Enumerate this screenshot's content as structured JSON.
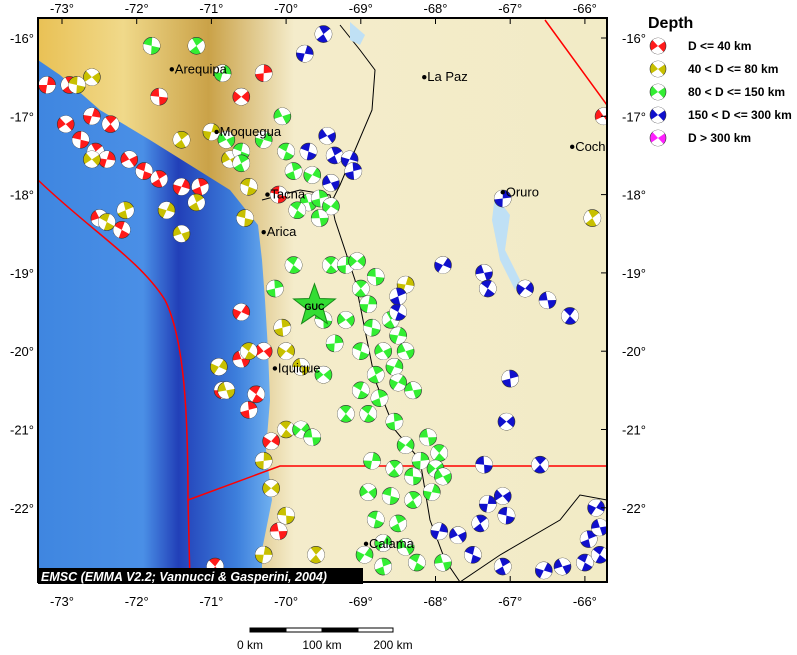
{
  "map": {
    "lon_range": [
      -73.3,
      -65.7
    ],
    "lat_range": [
      -22.95,
      -15.75
    ],
    "lon_ticks": [
      "-73°",
      "-72°",
      "-71°",
      "-70°",
      "-69°",
      "-68°",
      "-67°",
      "-66°"
    ],
    "lat_ticks": [
      "-16°",
      "-17°",
      "-18°",
      "-19°",
      "-20°",
      "-21°",
      "-22°"
    ],
    "colors": {
      "ocean": "#3f86e0",
      "trench": "#1e3fb0",
      "coast": "#e8c15a",
      "altiplano": "#f3ecc4",
      "plate_boundary": "#ff0000",
      "border": "#000000"
    },
    "cities": [
      {
        "name": "Arequipa",
        "lon": -71.53,
        "lat": -16.4
      },
      {
        "name": "Moquegua",
        "lon": -70.93,
        "lat": -17.2
      },
      {
        "name": "Tacna",
        "lon": -70.25,
        "lat": -18.0
      },
      {
        "name": "Arica",
        "lon": -70.3,
        "lat": -18.48
      },
      {
        "name": "Iquique",
        "lon": -70.15,
        "lat": -20.22
      },
      {
        "name": "La Paz",
        "lon": -68.15,
        "lat": -16.5
      },
      {
        "name": "Oruro",
        "lon": -67.1,
        "lat": -17.97
      },
      {
        "name": "Coch",
        "lon": -66.17,
        "lat": -17.39
      },
      {
        "name": "Calama",
        "lon": -68.93,
        "lat": -22.46
      }
    ],
    "station": {
      "code": "GUC",
      "lon": -69.62,
      "lat": -19.42,
      "color": "#33dd33"
    },
    "credit": "EMSC (EMMA V2.2; Vannucci & Gasperini, 2004)"
  },
  "legend": {
    "title": "Depth",
    "items": [
      {
        "label": "D <= 40 km",
        "color": "#ff1a1a"
      },
      {
        "label": "40 < D <= 80 km",
        "color": "#c8c000"
      },
      {
        "label": "80 < D <= 150 km",
        "color": "#33ee33"
      },
      {
        "label": "150 < D <= 300 km",
        "color": "#1010cc"
      },
      {
        "label": "D > 300 km",
        "color": "#ff20ff"
      }
    ]
  },
  "scale_bar": {
    "labels": [
      "0 km",
      "100 km",
      "200 km"
    ]
  },
  "events": {
    "shallow": [
      [
        -73.2,
        -16.6
      ],
      [
        -72.95,
        -17.1
      ],
      [
        -72.75,
        -17.3
      ],
      [
        -72.55,
        -17.45
      ],
      [
        -72.4,
        -17.55
      ],
      [
        -72.1,
        -17.55
      ],
      [
        -71.9,
        -17.7
      ],
      [
        -71.7,
        -17.8
      ],
      [
        -71.4,
        -17.9
      ],
      [
        -72.5,
        -18.3
      ],
      [
        -72.2,
        -18.45
      ],
      [
        -71.15,
        -17.9
      ],
      [
        -70.6,
        -19.5
      ],
      [
        -70.6,
        -20.1
      ],
      [
        -70.4,
        -20.55
      ],
      [
        -70.5,
        -20.75
      ],
      [
        -70.2,
        -21.15
      ],
      [
        -70.1,
        -22.3
      ],
      [
        -70.95,
        -22.75
      ],
      [
        -70.3,
        -16.45
      ],
      [
        -70.6,
        -16.75
      ],
      [
        -71.7,
        -16.75
      ],
      [
        -72.35,
        -17.1
      ],
      [
        -70.85,
        -20.5
      ],
      [
        -70.3,
        -20.0
      ],
      [
        -70.1,
        -18.0
      ],
      [
        -72.9,
        -16.6
      ],
      [
        -72.6,
        -17.0
      ],
      [
        -65.75,
        -17.0
      ]
    ],
    "intermediate": [
      [
        -72.6,
        -16.5
      ],
      [
        -72.8,
        -16.6
      ],
      [
        -71.4,
        -17.3
      ],
      [
        -71.0,
        -17.2
      ],
      [
        -70.75,
        -17.55
      ],
      [
        -70.5,
        -17.9
      ],
      [
        -71.2,
        -18.1
      ],
      [
        -71.6,
        -18.2
      ],
      [
        -71.4,
        -18.5
      ],
      [
        -72.4,
        -18.35
      ],
      [
        -72.15,
        -18.2
      ],
      [
        -70.9,
        -20.2
      ],
      [
        -70.8,
        -20.5
      ],
      [
        -70.5,
        -20.0
      ],
      [
        -70.05,
        -19.7
      ],
      [
        -70.0,
        -20.0
      ],
      [
        -69.8,
        -20.2
      ],
      [
        -70.0,
        -21.0
      ],
      [
        -70.3,
        -21.4
      ],
      [
        -70.2,
        -21.75
      ],
      [
        -70.0,
        -22.1
      ],
      [
        -69.6,
        -22.6
      ],
      [
        -70.3,
        -22.6
      ],
      [
        -72.6,
        -17.55
      ],
      [
        -70.55,
        -18.3
      ],
      [
        -65.9,
        -18.3
      ],
      [
        -68.4,
        -19.15
      ]
    ],
    "deep": [
      [
        -71.8,
        -16.1
      ],
      [
        -71.2,
        -16.1
      ],
      [
        -70.85,
        -16.45
      ],
      [
        -70.8,
        -17.3
      ],
      [
        -70.6,
        -17.45
      ],
      [
        -70.6,
        -17.6
      ],
      [
        -70.3,
        -17.3
      ],
      [
        -70.05,
        -17.0
      ],
      [
        -70.0,
        -17.45
      ],
      [
        -69.9,
        -17.7
      ],
      [
        -69.65,
        -17.75
      ],
      [
        -69.7,
        -18.1
      ],
      [
        -69.85,
        -18.2
      ],
      [
        -69.55,
        -18.05
      ],
      [
        -69.4,
        -18.15
      ],
      [
        -69.55,
        -18.3
      ],
      [
        -69.4,
        -18.9
      ],
      [
        -69.2,
        -18.9
      ],
      [
        -69.05,
        -18.85
      ],
      [
        -68.8,
        -19.05
      ],
      [
        -69.0,
        -19.2
      ],
      [
        -68.9,
        -19.4
      ],
      [
        -69.2,
        -19.6
      ],
      [
        -68.85,
        -19.7
      ],
      [
        -68.6,
        -19.6
      ],
      [
        -68.5,
        -19.8
      ],
      [
        -68.7,
        -20.0
      ],
      [
        -69.0,
        -20.0
      ],
      [
        -68.8,
        -20.3
      ],
      [
        -68.55,
        -20.2
      ],
      [
        -68.4,
        -20.0
      ],
      [
        -69.0,
        -20.5
      ],
      [
        -68.75,
        -20.6
      ],
      [
        -68.5,
        -20.4
      ],
      [
        -68.3,
        -20.5
      ],
      [
        -68.9,
        -20.8
      ],
      [
        -68.55,
        -20.9
      ],
      [
        -68.4,
        -21.2
      ],
      [
        -68.1,
        -21.1
      ],
      [
        -67.95,
        -21.3
      ],
      [
        -68.2,
        -21.4
      ],
      [
        -68.0,
        -21.5
      ],
      [
        -68.3,
        -21.6
      ],
      [
        -68.55,
        -21.5
      ],
      [
        -68.85,
        -21.4
      ],
      [
        -68.9,
        -21.8
      ],
      [
        -68.6,
        -21.85
      ],
      [
        -68.3,
        -21.9
      ],
      [
        -68.05,
        -21.8
      ],
      [
        -67.9,
        -21.6
      ],
      [
        -68.8,
        -22.15
      ],
      [
        -68.5,
        -22.2
      ],
      [
        -68.7,
        -22.45
      ],
      [
        -68.4,
        -22.5
      ],
      [
        -68.25,
        -22.7
      ],
      [
        -68.7,
        -22.75
      ],
      [
        -68.95,
        -22.6
      ],
      [
        -67.9,
        -22.7
      ],
      [
        -69.9,
        -18.9
      ],
      [
        -70.15,
        -19.2
      ],
      [
        -69.8,
        -21.0
      ],
      [
        -69.65,
        -21.1
      ],
      [
        -69.2,
        -20.8
      ],
      [
        -69.35,
        -19.9
      ],
      [
        -69.5,
        -20.3
      ],
      [
        -69.5,
        -19.6
      ]
    ],
    "very_deep": [
      [
        -69.5,
        -15.95
      ],
      [
        -69.75,
        -16.2
      ],
      [
        -69.45,
        -17.25
      ],
      [
        -69.7,
        -17.45
      ],
      [
        -69.35,
        -17.5
      ],
      [
        -69.15,
        -17.55
      ],
      [
        -69.4,
        -17.85
      ],
      [
        -68.5,
        -19.5
      ],
      [
        -68.5,
        -19.3
      ],
      [
        -67.9,
        -18.9
      ],
      [
        -67.35,
        -19.0
      ],
      [
        -67.3,
        -19.2
      ],
      [
        -67.0,
        -20.35
      ],
      [
        -66.8,
        -19.2
      ],
      [
        -66.5,
        -19.35
      ],
      [
        -66.2,
        -19.55
      ],
      [
        -67.1,
        -18.05
      ],
      [
        -67.05,
        -20.9
      ],
      [
        -67.35,
        -21.45
      ],
      [
        -66.6,
        -21.45
      ],
      [
        -67.3,
        -21.95
      ],
      [
        -67.1,
        -21.85
      ],
      [
        -67.05,
        -22.1
      ],
      [
        -67.4,
        -22.2
      ],
      [
        -67.95,
        -22.3
      ],
      [
        -67.7,
        -22.35
      ],
      [
        -67.5,
        -22.6
      ],
      [
        -67.1,
        -22.75
      ],
      [
        -66.55,
        -22.8
      ],
      [
        -66.3,
        -22.75
      ],
      [
        -66.0,
        -22.7
      ],
      [
        -65.95,
        -22.4
      ],
      [
        -65.85,
        -22.0
      ],
      [
        -65.8,
        -22.25
      ],
      [
        -65.8,
        -22.6
      ],
      [
        -69.1,
        -17.7
      ]
    ]
  }
}
